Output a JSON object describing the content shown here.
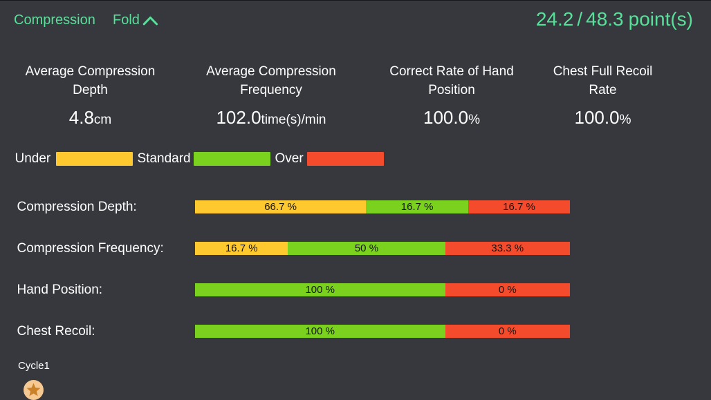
{
  "colors": {
    "background": "#36383e",
    "top_line": "#17181c",
    "accent_green": "#57e099",
    "text_white": "#ffffff",
    "bar_yellow": "#fec92f",
    "bar_green": "#7ad21f",
    "bar_red": "#f34b2b",
    "bar_label_text": "#151515",
    "badge_circle": "#f6c892",
    "badge_star": "#c9812a"
  },
  "header": {
    "title": "Compression",
    "fold_label": "Fold",
    "fold_icon": "chevron-up-icon",
    "score": {
      "achieved": "24.2",
      "separator": "/",
      "total": "48.3",
      "unit": "point(s)"
    }
  },
  "stats": [
    {
      "label": "Average Compression\nDepth",
      "value": "4.8",
      "unit": "cm"
    },
    {
      "label": "Average Compression\nFrequency",
      "value": "102.0",
      "unit": "time(s)/min"
    },
    {
      "label": "Correct Rate of Hand\nPosition",
      "value": "100.0",
      "unit": "%"
    },
    {
      "label": "Chest Full Recoil\nRate",
      "value": "100.0",
      "unit": "%"
    }
  ],
  "legend": [
    {
      "label": "Under",
      "color": "yellow"
    },
    {
      "label": "Standard",
      "color": "green"
    },
    {
      "label": "Over",
      "color": "red"
    }
  ],
  "rows": [
    {
      "label": "Compression Depth:",
      "segments": [
        {
          "label": "66.7 %",
          "color": "yellow",
          "width_pct": 45.6
        },
        {
          "label": "16.7 %",
          "color": "green",
          "width_pct": 27.3
        },
        {
          "label": "16.7 %",
          "color": "red",
          "width_pct": 27.1
        }
      ]
    },
    {
      "label": "Compression Frequency:",
      "segments": [
        {
          "label": "16.7 %",
          "color": "yellow",
          "width_pct": 24.8
        },
        {
          "label": "50 %",
          "color": "green",
          "width_pct": 41.9
        },
        {
          "label": "33.3 %",
          "color": "red",
          "width_pct": 33.3
        }
      ]
    },
    {
      "label": "Hand Position:",
      "segments": [
        {
          "label": "100 %",
          "color": "green",
          "width_pct": 66.7
        },
        {
          "label": "0 %",
          "color": "red",
          "width_pct": 33.3
        }
      ]
    },
    {
      "label": "Chest Recoil:",
      "segments": [
        {
          "label": "100 %",
          "color": "green",
          "width_pct": 66.7
        },
        {
          "label": "0 %",
          "color": "red",
          "width_pct": 33.3
        }
      ]
    }
  ],
  "footer": {
    "cycle_label": "Cycle1",
    "badge_icon": "star-icon"
  }
}
